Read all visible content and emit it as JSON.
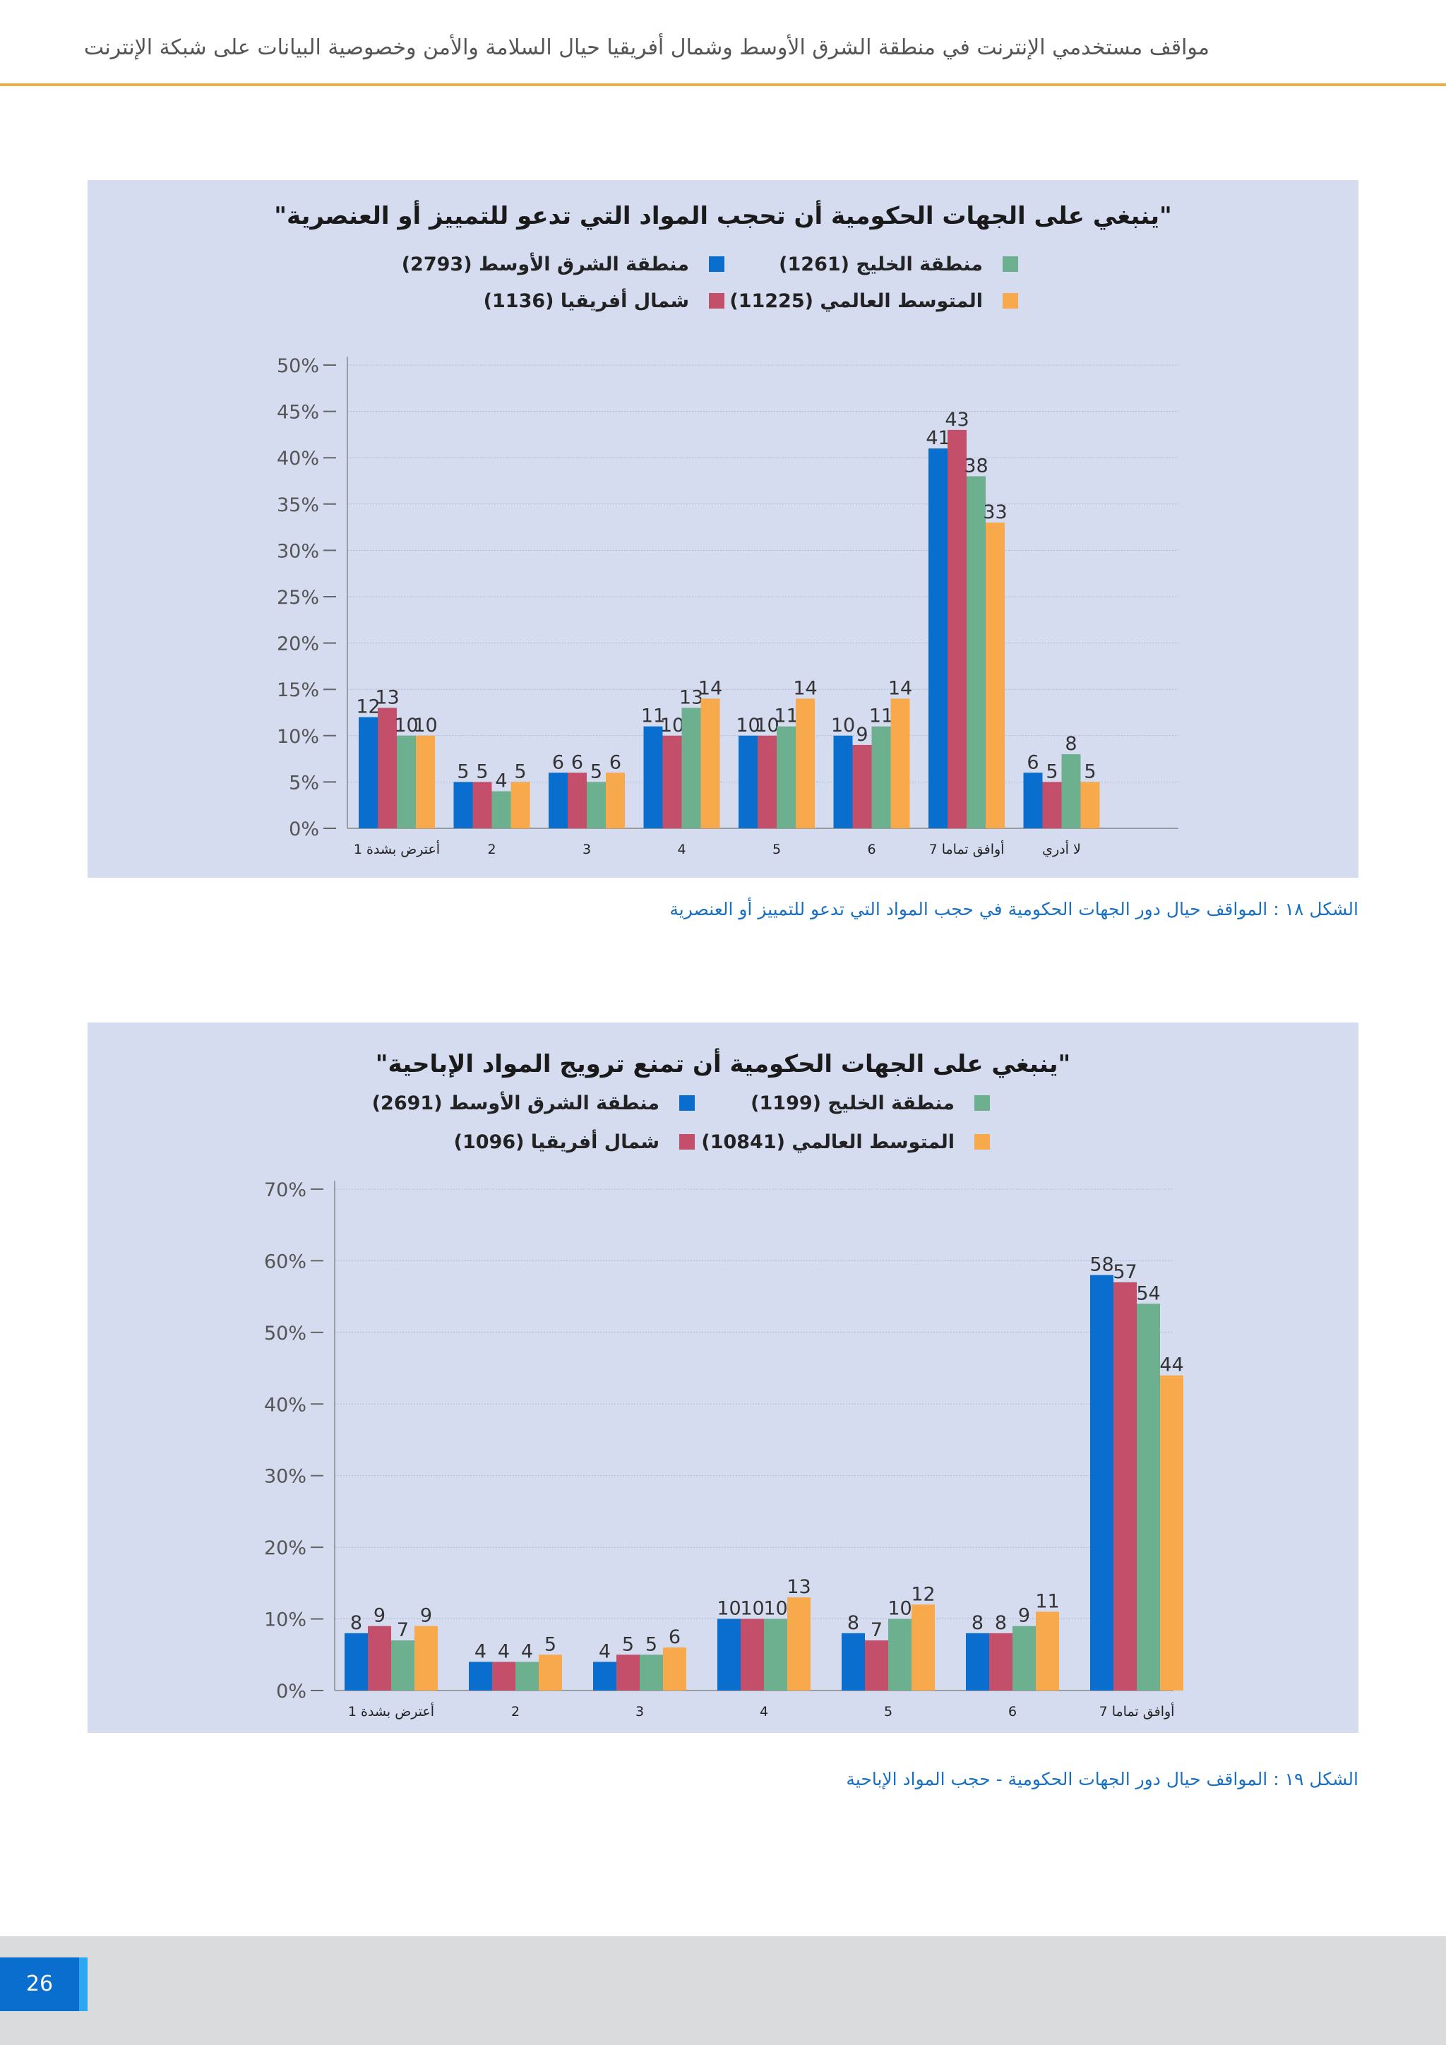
{
  "header": {
    "title": "مواقف مستخدمي الإنترنت في منطقة الشرق الأوسط وشمال أفريقيا حيال السلامة والأمن وخصوصية البيانات على شبكة الإنترنت"
  },
  "footer": {
    "page_number": "26"
  },
  "colors": {
    "series": [
      "#0a6ecf",
      "#c44f6a",
      "#6db08f",
      "#f7a94b"
    ],
    "panel_bg": "#d6dcf0",
    "accent": "#e8b04a",
    "caption": "#1a6fc0"
  },
  "chart_data": [
    {
      "type": "bar",
      "title": "\"ينبغي على الجهات الحكومية أن تحجب المواد التي تدعو للتمييز أو العنصرية\"",
      "caption": "الشكل ١٨ : المواقف حيال دور الجهات الحكومية في حجب المواد التي تدعو للتمييز أو العنصرية",
      "categories": [
        "أعترض بشدة 1",
        "2",
        "3",
        "4",
        "5",
        "6",
        "أوافق تماما 7",
        "لا أدري"
      ],
      "ylim": [
        0,
        50
      ],
      "yticks": [
        "0%",
        "5%",
        "10%",
        "15%",
        "20%",
        "25%",
        "30%",
        "35%",
        "40%",
        "45%",
        "50%"
      ],
      "grid": true,
      "legend_position": "top",
      "series": [
        {
          "name": "منطقة الشرق الأوسط (2793)",
          "color": "#0a6ecf",
          "values": [
            12,
            5,
            6,
            11,
            10,
            10,
            41,
            6
          ]
        },
        {
          "name": "شمال أفريقيا (1136)",
          "color": "#c44f6a",
          "values": [
            13,
            5,
            6,
            10,
            10,
            9,
            43,
            5
          ]
        },
        {
          "name": "منطقة الخليج (1261)",
          "color": "#6db08f",
          "values": [
            10,
            4,
            5,
            13,
            11,
            11,
            38,
            8
          ]
        },
        {
          "name": "المتوسط العالمي (11225)",
          "color": "#f7a94b",
          "values": [
            10,
            5,
            6,
            14,
            14,
            14,
            33,
            5
          ]
        }
      ]
    },
    {
      "type": "bar",
      "title": "\"ينبغي على الجهات الحكومية أن تمنع ترويج المواد الإباحية\"",
      "caption": "الشكل ١٩ : المواقف حيال دور الجهات الحكومية - حجب المواد الإباحية",
      "categories": [
        "أعترض بشدة 1",
        "2",
        "3",
        "4",
        "5",
        "6",
        "أوافق تماما 7"
      ],
      "ylim": [
        0,
        70
      ],
      "yticks": [
        "0%",
        "10%",
        "20%",
        "30%",
        "40%",
        "50%",
        "60%",
        "70%"
      ],
      "grid": true,
      "legend_position": "top",
      "series": [
        {
          "name": "منطقة الشرق الأوسط (2691)",
          "color": "#0a6ecf",
          "values": [
            8,
            4,
            4,
            10,
            8,
            8,
            58
          ]
        },
        {
          "name": "شمال أفريقيا (1096)",
          "color": "#c44f6a",
          "values": [
            9,
            4,
            5,
            10,
            7,
            8,
            57
          ]
        },
        {
          "name": "منطقة الخليج (1199)",
          "color": "#6db08f",
          "values": [
            7,
            4,
            5,
            10,
            10,
            9,
            54
          ]
        },
        {
          "name": "المتوسط العالمي (10841)",
          "color": "#f7a94b",
          "values": [
            9,
            5,
            6,
            13,
            12,
            11,
            44
          ]
        }
      ]
    }
  ]
}
